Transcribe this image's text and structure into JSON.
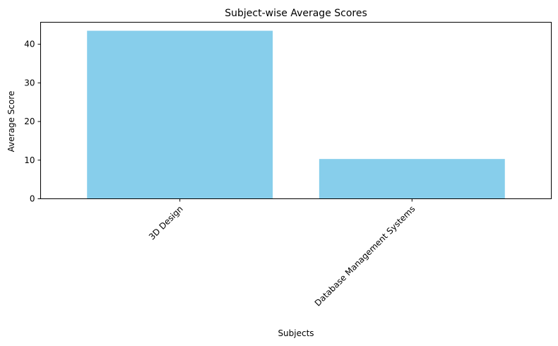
{
  "chart_data": {
    "type": "bar",
    "title": "Subject-wise Average Scores",
    "xlabel": "Subjects",
    "ylabel": "Average Score",
    "categories": [
      "3D Design",
      "Database Management Systems"
    ],
    "values": [
      43.5,
      10.3
    ],
    "ylim": [
      0,
      45.7
    ],
    "yticks": [
      0,
      10,
      20,
      30,
      40
    ],
    "ytick_labels": [
      "0",
      "10",
      "20",
      "30",
      "40"
    ],
    "xtick_rotation_deg": 45,
    "grid": false,
    "legend": "none",
    "colors": {
      "bar": "#87ceeb",
      "axis": "#000000",
      "background": "#ffffff"
    }
  }
}
